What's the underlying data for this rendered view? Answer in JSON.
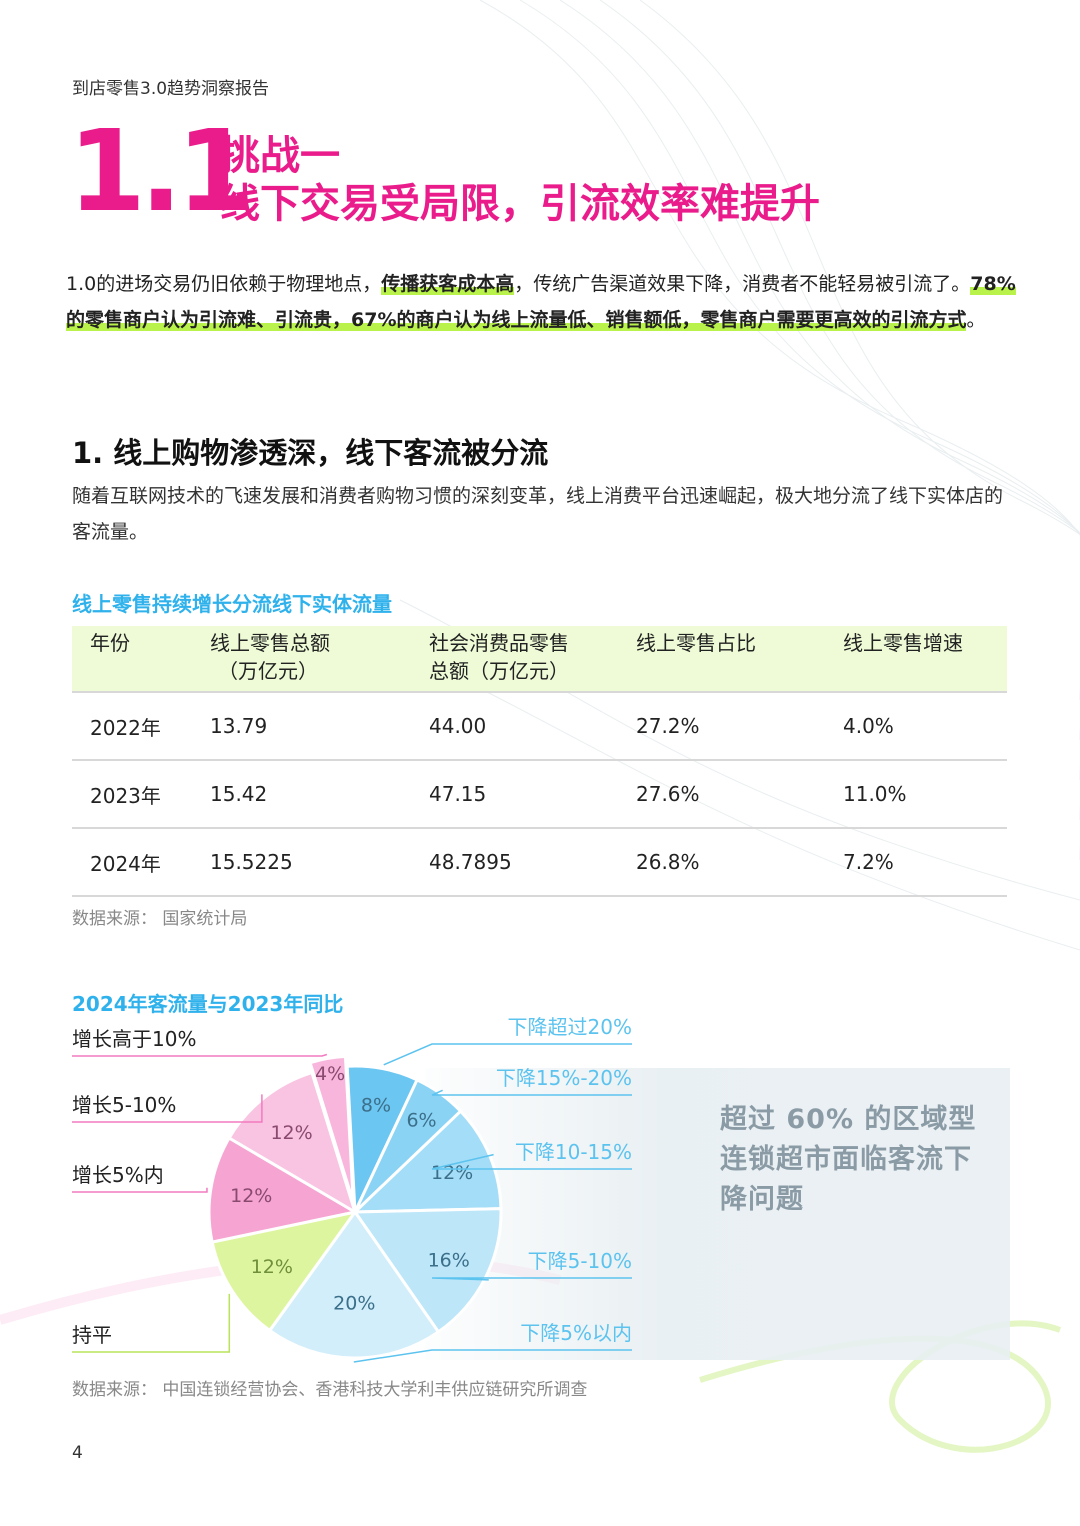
{
  "header": {
    "report_title": "到店零售3.0趋势洞察报告"
  },
  "section": {
    "number": "1.1",
    "kicker": "挑战一",
    "heading": "线下交易受局限，引流效率难提升"
  },
  "intro": {
    "text_1": "1.0的进场交易仍旧依赖于物理地点，",
    "highlight_1": "传播获客成本高",
    "text_2": "，传统广告渠道效果下降，消费者不能轻易被引流了。",
    "highlight_2": "78%的零售商户认为引流难、引流贵，67%的商户认为线上流量低、销售额低，零售商户需要更高效的引流方式",
    "text_3": "。"
  },
  "subsection": {
    "heading": "1. 线上购物渗透深，线下客流被分流",
    "text": "随着互联网技术的飞速发展和消费者购物习惯的深刻变革，线上消费平台迅速崛起，极大地分流了线下实体店的客流量。"
  },
  "table": {
    "caption": "线上零售持续增长分流线下实体流量",
    "headers": {
      "year": "年份",
      "online_total_1": "线上零售总额",
      "online_total_2": "（万亿元）",
      "retail_total_1": "社会消费品零售",
      "retail_total_2": "总额（万亿元）",
      "share": "线上零售占比",
      "growth": "线上零售增速"
    },
    "rows": [
      {
        "year": "2022年",
        "online": "13.79",
        "retail": "44.00",
        "share": "27.2%",
        "growth": "4.0%"
      },
      {
        "year": "2023年",
        "online": "15.42",
        "retail": "47.15",
        "share": "27.6%",
        "growth": "11.0%"
      },
      {
        "year": "2024年",
        "online": "15.5225",
        "retail": "48.7895",
        "share": "26.8%",
        "growth": "7.2%"
      }
    ],
    "source": "数据来源：  国家统计局"
  },
  "chart_data": {
    "type": "pie",
    "title": "2024年客流量与2023年同比",
    "slices": [
      {
        "label": "增长高于10%",
        "value": 4,
        "display": "4%",
        "color": "#f8b6dc"
      },
      {
        "label": "下降超过20%",
        "value": 8,
        "display": "8%",
        "color": "#6cc6f2"
      },
      {
        "label": "下降15%-20%",
        "value": 6,
        "display": "6%",
        "color": "#8ad3f5"
      },
      {
        "label": "下降10-15%",
        "value": 12,
        "display": "12%",
        "color": "#a4ddf7"
      },
      {
        "label": "下降5-10%",
        "value": 16,
        "display": "16%",
        "color": "#bde6f9"
      },
      {
        "label": "下降5%以内",
        "value": 20,
        "display": "20%",
        "color": "#d2eefa"
      },
      {
        "label": "持平",
        "value": 12,
        "display": "12%",
        "color": "#def5a0"
      },
      {
        "label": "增长5%内",
        "value": 12,
        "display": "12%",
        "color": "#f6a4d2"
      },
      {
        "label": "增长5-10%",
        "value": 12,
        "display": "12%",
        "color": "#f9c3e2"
      }
    ],
    "source": "数据来源：  中国连锁经营协会、香港科技大学利丰供应链研究所调查"
  },
  "callout": {
    "text": "超过 60% 的区域型连锁超市面临客流下降问题"
  },
  "footer": {
    "page_number": "4"
  }
}
